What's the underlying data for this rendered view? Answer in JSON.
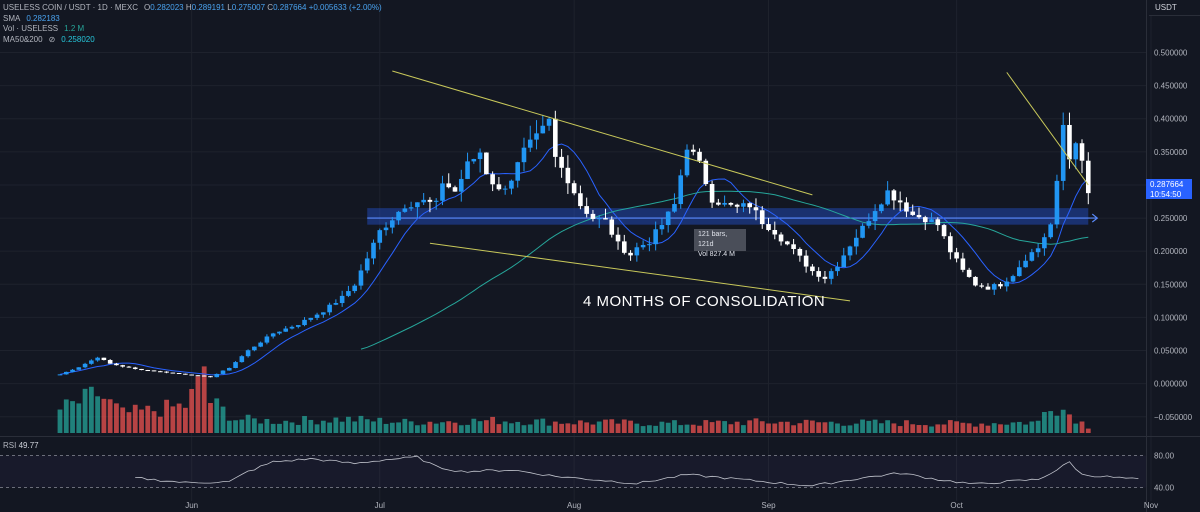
{
  "header": {
    "symbol": "USELESS COIN / USDT · 1D · MEXC",
    "o_label": "O",
    "o_value": "0.282023",
    "h_label": "H",
    "h_value": "0.289191",
    "l_label": "L",
    "l_value": "0.275007",
    "c_label": "C",
    "c_value": "0.287664",
    "change": "+0.005633 (+2.00%)",
    "sma_label": "SMA",
    "sma_value": "0.282183",
    "vol_label": "Vol · USELESS",
    "vol_value": "1.2 M",
    "ma_label": "MA50&200",
    "ma_icon": "eye-off-icon",
    "ma_value": "0.258020"
  },
  "quote": "USDT",
  "last_price": {
    "price": "0.287664",
    "countdown": "10:54:50"
  },
  "rsi": {
    "label": "RSI",
    "value": "49.77"
  },
  "annotation": "4 MONTHS OF CONSOLIDATION",
  "tooltip": {
    "line1": "121 bars, 121d",
    "line2": "Vol 827.4 M"
  },
  "colors": {
    "up": "#2196f3",
    "down": "#ffffff",
    "vol_up": "#26a69a",
    "vol_down": "#ef5350",
    "trendline": "#c8c85a",
    "sma": "#2962ff",
    "ma": "#26a69a",
    "zone": "#2962ff",
    "rsi": "#c0c3cc"
  },
  "chart_data": {
    "type": "candlestick",
    "price_axis": {
      "ylim": [
        -0.07,
        0.54
      ],
      "ticks": [
        "0.500000",
        "0.450000",
        "0.400000",
        "0.350000",
        "0.300000",
        "0.250000",
        "0.200000",
        "0.150000",
        "0.100000",
        "0.050000",
        "0.000000",
        "−0.050000"
      ],
      "tick_values": [
        0.5,
        0.45,
        0.4,
        0.35,
        0.3,
        0.25,
        0.2,
        0.15,
        0.1,
        0.05,
        0,
        -0.05
      ]
    },
    "rsi_axis": {
      "ylim": [
        28,
        92
      ],
      "ticks": [
        "80.00",
        "40.00"
      ],
      "tick_values": [
        80,
        40
      ]
    },
    "time_axis": {
      "labels": [
        "Jun",
        "Jul",
        "Aug",
        "Sep",
        "Oct",
        "Nov"
      ],
      "label_day_index": [
        21,
        51,
        82,
        113,
        143,
        174
      ]
    },
    "day_count": 165,
    "close_keyframes": [
      [
        0,
        0.014
      ],
      [
        3,
        0.025
      ],
      [
        6,
        0.04
      ],
      [
        8,
        0.03
      ],
      [
        12,
        0.022
      ],
      [
        20,
        0.014
      ],
      [
        24,
        0.01
      ],
      [
        27,
        0.024
      ],
      [
        30,
        0.05
      ],
      [
        34,
        0.076
      ],
      [
        38,
        0.09
      ],
      [
        42,
        0.11
      ],
      [
        45,
        0.13
      ],
      [
        47,
        0.15
      ],
      [
        49,
        0.19
      ],
      [
        51,
        0.23
      ],
      [
        53,
        0.25
      ],
      [
        55,
        0.27
      ],
      [
        57,
        0.275
      ],
      [
        58,
        0.275
      ],
      [
        60,
        0.27
      ],
      [
        61,
        0.305
      ],
      [
        63,
        0.29
      ],
      [
        65,
        0.33
      ],
      [
        67,
        0.35
      ],
      [
        68,
        0.32
      ],
      [
        70,
        0.29
      ],
      [
        72,
        0.31
      ],
      [
        74,
        0.35
      ],
      [
        76,
        0.37
      ],
      [
        78,
        0.395
      ],
      [
        79,
        0.34
      ],
      [
        81,
        0.31
      ],
      [
        83,
        0.27
      ],
      [
        85,
        0.25
      ],
      [
        87,
        0.245
      ],
      [
        89,
        0.21
      ],
      [
        91,
        0.195
      ],
      [
        92,
        0.205
      ],
      [
        94,
        0.215
      ],
      [
        96,
        0.24
      ],
      [
        98,
        0.27
      ],
      [
        100,
        0.36
      ],
      [
        102,
        0.33
      ],
      [
        104,
        0.28
      ],
      [
        106,
        0.27
      ],
      [
        108,
        0.265
      ],
      [
        110,
        0.27
      ],
      [
        112,
        0.245
      ],
      [
        114,
        0.23
      ],
      [
        116,
        0.21
      ],
      [
        118,
        0.19
      ],
      [
        120,
        0.17
      ],
      [
        122,
        0.16
      ],
      [
        124,
        0.18
      ],
      [
        126,
        0.21
      ],
      [
        128,
        0.235
      ],
      [
        130,
        0.265
      ],
      [
        132,
        0.29
      ],
      [
        134,
        0.275
      ],
      [
        136,
        0.255
      ],
      [
        138,
        0.25
      ],
      [
        140,
        0.24
      ],
      [
        142,
        0.2
      ],
      [
        144,
        0.17
      ],
      [
        146,
        0.15
      ],
      [
        148,
        0.145
      ],
      [
        150,
        0.15
      ],
      [
        152,
        0.165
      ],
      [
        154,
        0.19
      ],
      [
        156,
        0.205
      ],
      [
        158,
        0.24
      ],
      [
        159,
        0.3
      ],
      [
        160,
        0.39
      ],
      [
        161,
        0.34
      ],
      [
        162,
        0.37
      ],
      [
        163,
        0.33
      ],
      [
        164,
        0.288
      ]
    ],
    "volume_keyframes": [
      [
        0,
        30
      ],
      [
        4,
        42
      ],
      [
        6,
        50
      ],
      [
        10,
        25
      ],
      [
        14,
        28
      ],
      [
        20,
        35
      ],
      [
        22,
        60
      ],
      [
        23,
        85
      ],
      [
        24,
        40
      ],
      [
        28,
        18
      ],
      [
        35,
        15
      ],
      [
        45,
        18
      ],
      [
        55,
        14
      ],
      [
        70,
        16
      ],
      [
        80,
        14
      ],
      [
        100,
        12
      ],
      [
        110,
        14
      ],
      [
        130,
        13
      ],
      [
        145,
        12
      ],
      [
        156,
        14
      ],
      [
        158,
        40
      ],
      [
        160,
        30
      ],
      [
        164,
        8
      ]
    ],
    "rsi_keyframes": [
      [
        12,
        52
      ],
      [
        20,
        46
      ],
      [
        27,
        47
      ],
      [
        30,
        60
      ],
      [
        34,
        72
      ],
      [
        40,
        76
      ],
      [
        47,
        70
      ],
      [
        52,
        75
      ],
      [
        57,
        78
      ],
      [
        60,
        66
      ],
      [
        64,
        60
      ],
      [
        72,
        62
      ],
      [
        79,
        54
      ],
      [
        85,
        50
      ],
      [
        92,
        45
      ],
      [
        100,
        56
      ],
      [
        106,
        52
      ],
      [
        114,
        46
      ],
      [
        120,
        42
      ],
      [
        128,
        52
      ],
      [
        134,
        58
      ],
      [
        140,
        50
      ],
      [
        146,
        44
      ],
      [
        152,
        48
      ],
      [
        156,
        50
      ],
      [
        159,
        62
      ],
      [
        161,
        72
      ],
      [
        163,
        56
      ],
      [
        166,
        54
      ],
      [
        172,
        50
      ]
    ],
    "trendlines": [
      {
        "name": "upper",
        "from": [
          53,
          0.472
        ],
        "to": [
          120,
          0.285
        ]
      },
      {
        "name": "lower",
        "from": [
          59,
          0.212
        ],
        "to": [
          126,
          0.125
        ]
      },
      {
        "name": "right-down",
        "from": [
          151,
          0.47
        ],
        "to": [
          164,
          0.3
        ]
      }
    ],
    "zone": {
      "from_day": 49,
      "to_day": 164,
      "low": 0.24,
      "high": 0.265,
      "level": 0.25
    }
  }
}
